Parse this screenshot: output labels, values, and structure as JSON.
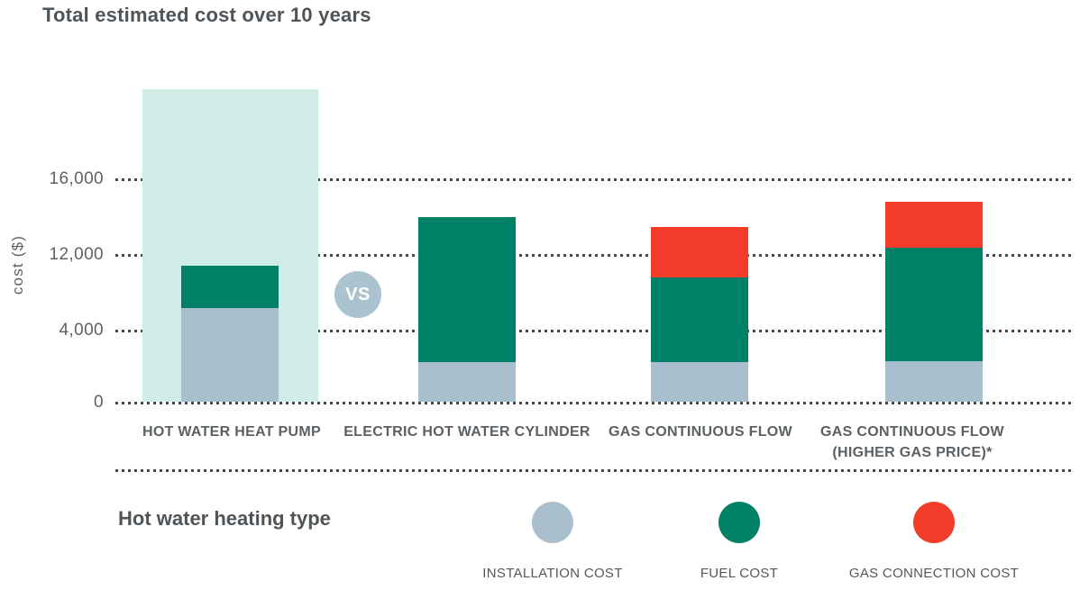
{
  "chart_data": {
    "type": "stacked-bar",
    "title": "Total estimated cost over 10 years",
    "ylabel": "cost ($)",
    "y_ticks": [
      {
        "label": "0",
        "value": 0
      },
      {
        "label": "4,000",
        "value": 4000
      },
      {
        "label": "12,000",
        "value": 12000
      },
      {
        "label": "16,000",
        "value": 16000
      }
    ],
    "categories": [
      "HOT WATER HEAT PUMP",
      "ELECTRIC HOT WATER CYLINDER",
      "GAS CONTINUOUS FLOW",
      "GAS CONTINUOUS FLOW\n(HIGHER GAS PRICE)*"
    ],
    "series": [
      {
        "name": "INSTALLATION COST",
        "color": "#a9bfcd",
        "values": [
          6400,
          2250,
          2250,
          2300
        ]
      },
      {
        "name": "FUEL COST",
        "color": "#008066",
        "values": [
          4500,
          11750,
          7350,
          10100
        ]
      },
      {
        "name": "GAS CONNECTION COST",
        "color": "#f43c2a",
        "values": [
          0,
          0,
          3900,
          2400
        ]
      }
    ],
    "highlighted_category": "HOT WATER HEAT PUMP",
    "highlight_color": "#cfede6",
    "vs_badge": "VS",
    "vs_badge_color": "#abc2cf",
    "legend_title": "Hot water heating type",
    "grid": "dotted-horizontal",
    "legend_position": "bottom"
  }
}
